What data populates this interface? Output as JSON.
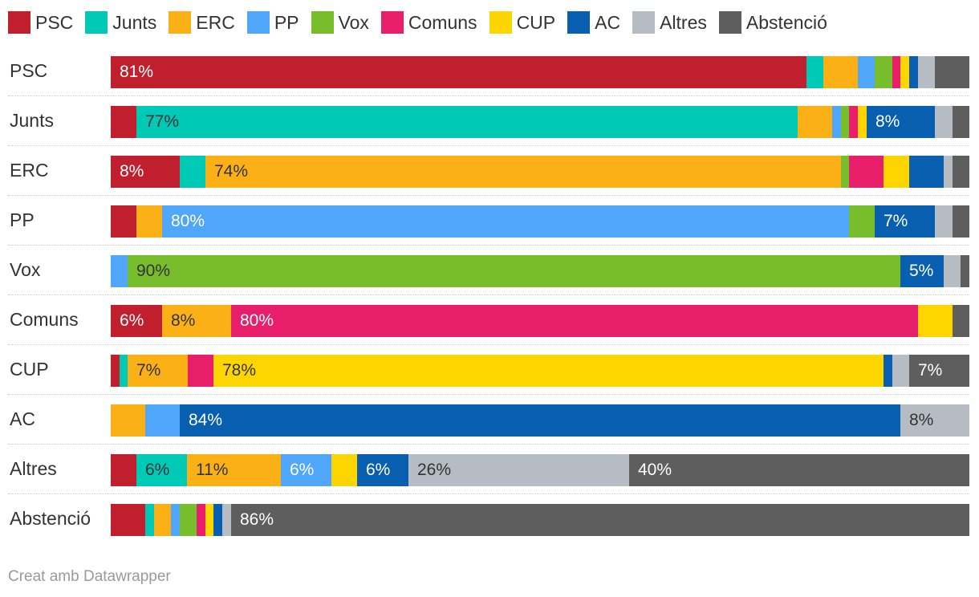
{
  "legend": [
    {
      "label": "PSC",
      "color": "#c0202e"
    },
    {
      "label": "Junts",
      "color": "#00c9b6"
    },
    {
      "label": "ERC",
      "color": "#fbb016"
    },
    {
      "label": "PP",
      "color": "#50a6f8"
    },
    {
      "label": "Vox",
      "color": "#78be2c"
    },
    {
      "label": "Comuns",
      "color": "#e91e6b"
    },
    {
      "label": "CUP",
      "color": "#fed500"
    },
    {
      "label": "AC",
      "color": "#085fb0"
    },
    {
      "label": "Altres",
      "color": "#b5bcc4"
    },
    {
      "label": "Abstenció",
      "color": "#5e5e5e"
    }
  ],
  "credit": "Creat amb Datawrapper",
  "chart_data": {
    "type": "bar",
    "stacked": true,
    "orientation": "horizontal",
    "categories": [
      "PSC",
      "Junts",
      "ERC",
      "PP",
      "Vox",
      "Comuns",
      "CUP",
      "AC",
      "Altres",
      "Abstenció"
    ],
    "series": [
      {
        "name": "PSC",
        "values": [
          81,
          3,
          8,
          3,
          0,
          6,
          1,
          0,
          3,
          4
        ]
      },
      {
        "name": "Junts",
        "values": [
          2,
          77,
          3,
          0,
          0,
          0,
          1,
          0,
          6,
          1
        ]
      },
      {
        "name": "ERC",
        "values": [
          4,
          4,
          74,
          3,
          0,
          8,
          7,
          4,
          11,
          2
        ]
      },
      {
        "name": "PP",
        "values": [
          2,
          1,
          0,
          80,
          2,
          0,
          0,
          4,
          6,
          1
        ]
      },
      {
        "name": "Vox",
        "values": [
          2,
          1,
          1,
          3,
          90,
          0,
          0,
          0,
          0,
          2
        ]
      },
      {
        "name": "Comuns",
        "values": [
          1,
          1,
          4,
          0,
          0,
          80,
          3,
          0,
          0,
          1
        ]
      },
      {
        "name": "CUP",
        "values": [
          1,
          1,
          3,
          0,
          0,
          4,
          78,
          0,
          3,
          1
        ]
      },
      {
        "name": "AC",
        "values": [
          1,
          8,
          4,
          7,
          5,
          0,
          1,
          84,
          6,
          1
        ]
      },
      {
        "name": "Altres",
        "values": [
          2,
          2,
          1,
          2,
          2,
          0,
          2,
          8,
          26,
          1
        ]
      },
      {
        "name": "Abstenció",
        "values": [
          4,
          2,
          2,
          2,
          1,
          2,
          7,
          0,
          40,
          86
        ]
      }
    ],
    "data_labels_shown_for_values_at_least": 5,
    "value_suffix": "%",
    "xlim": [
      0,
      100
    ],
    "legend_position": "top"
  }
}
